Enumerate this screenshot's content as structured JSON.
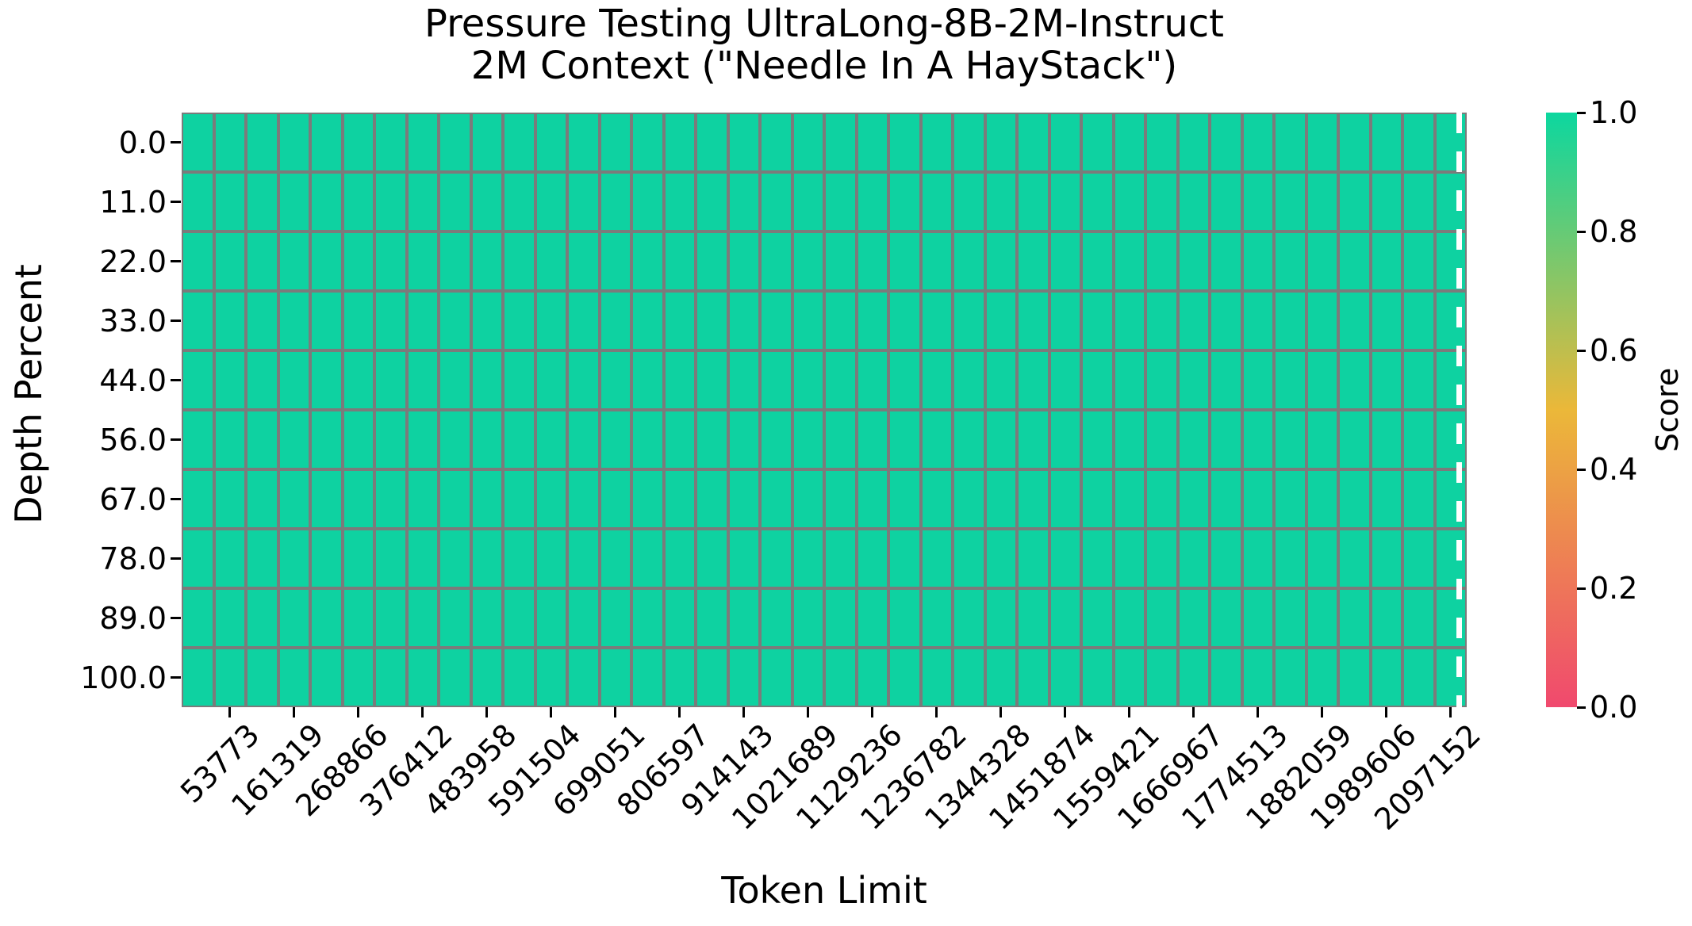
{
  "chart_data": {
    "type": "heatmap",
    "title_line1": "Pressure Testing UltraLong-8B-2M-Instruct",
    "title_line2": "2M Context (\"Needle In A HayStack\")",
    "xlabel": "Token Limit",
    "ylabel": "Depth Percent",
    "x_tick_labels": [
      "53773",
      "161319",
      "268866",
      "376412",
      "483958",
      "591504",
      "699051",
      "806597",
      "914143",
      "1021689",
      "1129236",
      "1236782",
      "1344328",
      "1451874",
      "1559421",
      "1666967",
      "1774513",
      "1882059",
      "1989606",
      "2097152"
    ],
    "y_tick_labels": [
      "0.0",
      "11.0",
      "22.0",
      "33.0",
      "44.0",
      "56.0",
      "67.0",
      "78.0",
      "89.0",
      "100.0"
    ],
    "grid": {
      "rows": 10,
      "cols": 40
    },
    "scores": {
      "uniform": true,
      "value": 1.0,
      "note": "every cell in the 10x40 grid has score 1.0"
    },
    "cell_color": "#0ed2a1",
    "gridline_color": "#7b7b7b",
    "x_range": [
      53773,
      2097152
    ],
    "y_range": [
      0.0,
      100.0
    ],
    "colorbar": {
      "label": "Score",
      "tick_labels": [
        "1.0",
        "0.8",
        "0.6",
        "0.4",
        "0.2",
        "0.0"
      ],
      "range": [
        0.0,
        1.0
      ],
      "gradient_stops_bottom_to_top": [
        "#F0496E",
        "#EBB839",
        "#0CD79F"
      ]
    },
    "annotations": {
      "dashed_line": {
        "color": "#ffffff",
        "style": "vertical dashed",
        "position": "just inside right edge of heatmap (~2097152 tokens)"
      }
    }
  }
}
